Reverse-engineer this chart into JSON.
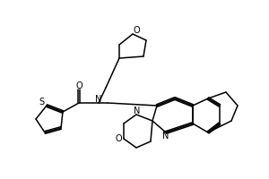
{
  "background_color": "#ffffff",
  "line_color": "#000000",
  "line_width": 1.1,
  "fig_width": 3.0,
  "fig_height": 2.0,
  "dpi": 100,
  "atoms": {
    "S": "S",
    "O_carbonyl": "O",
    "N_amide": "N",
    "O_thf": "O",
    "N_quinoline": "N",
    "N_morpholine": "N",
    "O_morpholine": "O"
  }
}
